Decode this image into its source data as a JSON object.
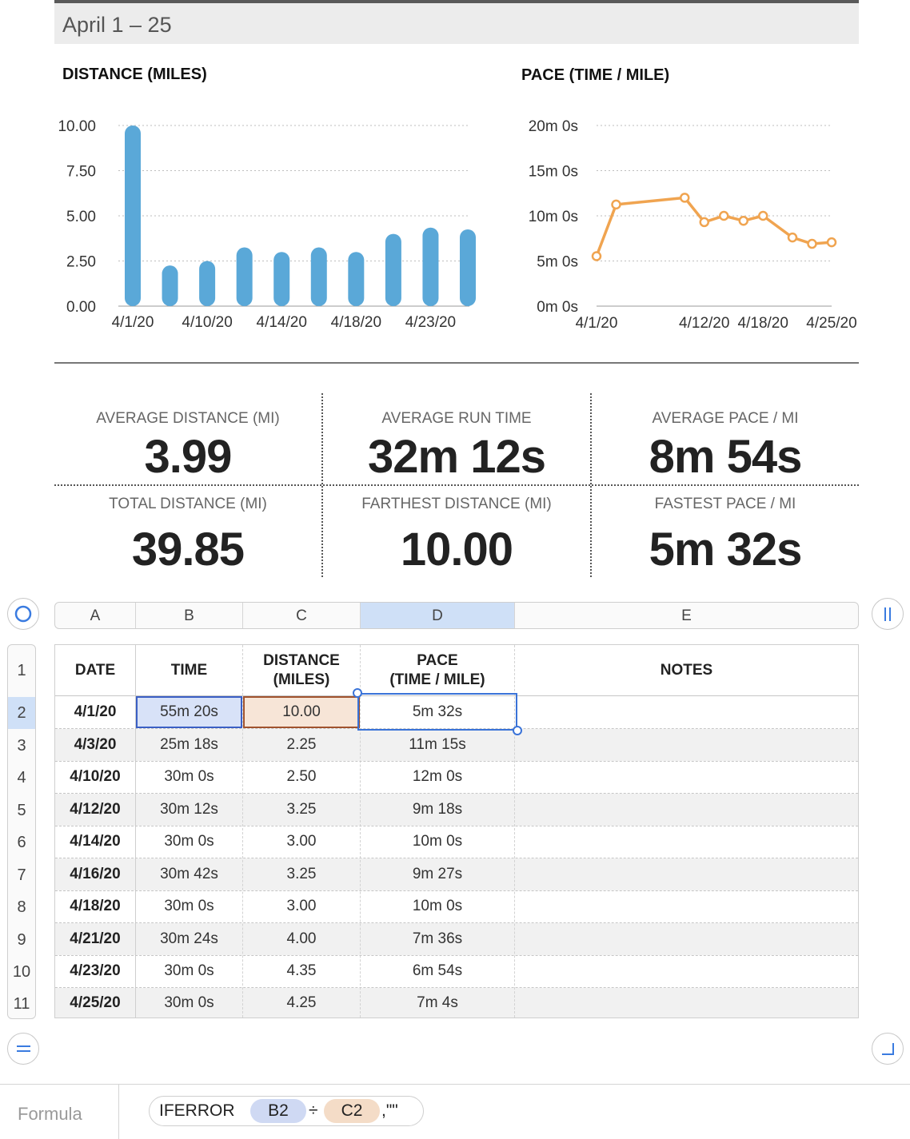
{
  "header": {
    "title": "April 1 – 25"
  },
  "colors": {
    "bar": "#5aa8d8",
    "line": "#f0a450",
    "selection": "#3a73d8"
  },
  "chart_data": [
    {
      "type": "bar",
      "title": "DISTANCE (MILES)",
      "categories": [
        "4/1/20",
        "4/3/20",
        "4/10/20",
        "4/12/20",
        "4/14/20",
        "4/16/20",
        "4/18/20",
        "4/21/20",
        "4/23/20",
        "4/25/20"
      ],
      "values": [
        10.0,
        2.25,
        2.5,
        3.25,
        3.0,
        3.25,
        3.0,
        4.0,
        4.35,
        4.25
      ],
      "x_tick_labels": [
        "4/1/20",
        "4/10/20",
        "4/14/20",
        "4/18/20",
        "4/23/20"
      ],
      "y_tick_labels": [
        "10.00",
        "7.50",
        "5.00",
        "2.50",
        "0.00"
      ],
      "ylim": [
        0,
        10
      ],
      "grid": true
    },
    {
      "type": "line",
      "title": "PACE (TIME / MILE)",
      "categories": [
        "4/1/20",
        "4/3/20",
        "4/10/20",
        "4/12/20",
        "4/14/20",
        "4/16/20",
        "4/18/20",
        "4/21/20",
        "4/23/20",
        "4/25/20"
      ],
      "x_days": [
        1,
        3,
        10,
        12,
        14,
        16,
        18,
        21,
        23,
        25
      ],
      "values_minutes": [
        5.53,
        11.25,
        12.0,
        9.3,
        10.0,
        9.45,
        10.0,
        7.6,
        6.9,
        7.07
      ],
      "x_tick_labels": [
        "4/1/20",
        "4/12/20",
        "4/18/20",
        "4/25/20"
      ],
      "y_tick_labels": [
        "20m 0s",
        "15m 0s",
        "10m 0s",
        "5m 0s",
        "0m 0s"
      ],
      "ylim": [
        0,
        20
      ],
      "grid": true
    }
  ],
  "stats": [
    {
      "label": "AVERAGE DISTANCE (MI)",
      "value": "3.99"
    },
    {
      "label": "AVERAGE RUN TIME",
      "value": "32m 12s"
    },
    {
      "label": "AVERAGE PACE / MI",
      "value": "8m 54s"
    },
    {
      "label": "TOTAL DISTANCE (MI)",
      "value": "39.85"
    },
    {
      "label": "FARTHEST DISTANCE (MI)",
      "value": "10.00"
    },
    {
      "label": "FASTEST PACE / MI",
      "value": "5m 32s"
    }
  ],
  "table": {
    "column_letters": [
      "A",
      "B",
      "C",
      "D",
      "E"
    ],
    "row_numbers": [
      "1",
      "2",
      "3",
      "4",
      "5",
      "6",
      "7",
      "8",
      "9",
      "10",
      "11"
    ],
    "headers": [
      "DATE",
      "TIME",
      "DISTANCE\n(MILES)",
      "PACE\n(TIME / MILE)",
      "NOTES"
    ],
    "rows": [
      [
        "4/1/20",
        "55m 20s",
        "10.00",
        "5m 32s",
        ""
      ],
      [
        "4/3/20",
        "25m 18s",
        "2.25",
        "11m 15s",
        ""
      ],
      [
        "4/10/20",
        "30m 0s",
        "2.50",
        "12m 0s",
        ""
      ],
      [
        "4/12/20",
        "30m 12s",
        "3.25",
        "9m 18s",
        ""
      ],
      [
        "4/14/20",
        "30m 0s",
        "3.00",
        "10m 0s",
        ""
      ],
      [
        "4/16/20",
        "30m 42s",
        "3.25",
        "9m 27s",
        ""
      ],
      [
        "4/18/20",
        "30m 0s",
        "3.00",
        "10m 0s",
        ""
      ],
      [
        "4/21/20",
        "30m 24s",
        "4.00",
        "7m 36s",
        ""
      ],
      [
        "4/23/20",
        "30m 0s",
        "4.35",
        "6m 54s",
        ""
      ],
      [
        "4/25/20",
        "30m 0s",
        "4.25",
        "7m 4s",
        ""
      ]
    ]
  },
  "formula": {
    "label": "Formula",
    "function": "IFERROR",
    "ref1": "B2",
    "operator": "÷",
    "ref2": "C2",
    "tail": ",\"\""
  },
  "icons": {
    "select_all": "circle-select-icon",
    "columns_handle": "column-handle-icon",
    "rows_handle": "row-handle-icon",
    "resize": "resize-corner-icon"
  }
}
